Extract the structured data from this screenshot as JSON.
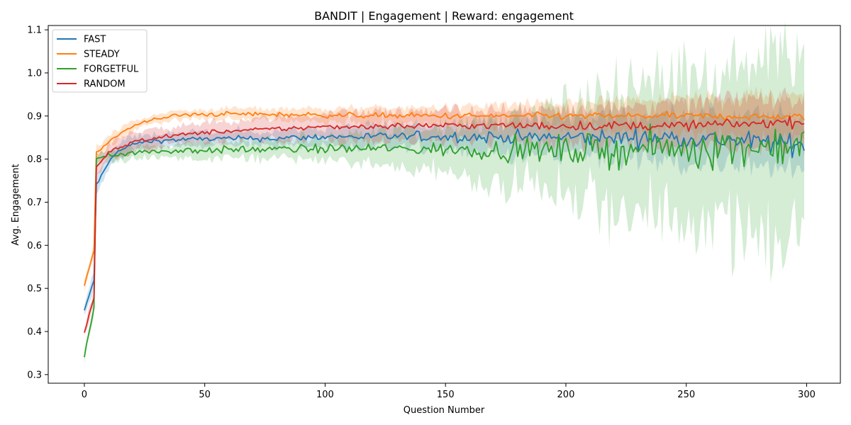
{
  "chart_data": {
    "type": "line",
    "title": "BANDIT | Engagement | Reward: engagement",
    "xlabel": "Question Number",
    "ylabel": "Avg. Engagement",
    "xlim": [
      -15,
      314
    ],
    "ylim": [
      0.28,
      1.11
    ],
    "xticks": [
      0,
      50,
      100,
      150,
      200,
      250,
      300
    ],
    "yticks": [
      0.3,
      0.4,
      0.5,
      0.6,
      0.7,
      0.8,
      0.9,
      1.0,
      1.1
    ],
    "grid": false,
    "legend_position": "top-left",
    "n_points": 300,
    "series": [
      {
        "name": "FAST",
        "color": "#1f77b4",
        "anchors_x": [
          0,
          4,
          5,
          8,
          12,
          20,
          30,
          50,
          80,
          100,
          150,
          200,
          250,
          299
        ],
        "anchors_y": [
          0.447,
          0.52,
          0.74,
          0.77,
          0.81,
          0.835,
          0.843,
          0.847,
          0.848,
          0.852,
          0.852,
          0.85,
          0.85,
          0.833
        ],
        "noise_anchors_x": [
          0,
          100,
          150,
          200,
          250,
          299
        ],
        "noise_anchors_y": [
          0.002,
          0.004,
          0.006,
          0.009,
          0.011,
          0.012
        ],
        "band_anchors_x": [
          0,
          5,
          10,
          30,
          100,
          150,
          200,
          250,
          299
        ],
        "band_anchors_y": [
          0.01,
          0.025,
          0.02,
          0.015,
          0.02,
          0.03,
          0.045,
          0.055,
          0.06
        ]
      },
      {
        "name": "STEADY",
        "color": "#ff7f0e",
        "anchors_x": [
          0,
          4,
          5,
          8,
          12,
          20,
          30,
          40,
          60,
          100,
          150,
          200,
          250,
          299
        ],
        "anchors_y": [
          0.507,
          0.59,
          0.815,
          0.83,
          0.85,
          0.875,
          0.895,
          0.902,
          0.905,
          0.902,
          0.9,
          0.9,
          0.9,
          0.897
        ],
        "noise_anchors_x": [
          0,
          100,
          200,
          299
        ],
        "noise_anchors_y": [
          0.002,
          0.003,
          0.004,
          0.004
        ],
        "band_anchors_x": [
          0,
          5,
          30,
          100,
          150,
          200,
          250,
          299
        ],
        "band_anchors_y": [
          0.01,
          0.015,
          0.01,
          0.015,
          0.02,
          0.03,
          0.04,
          0.055
        ]
      },
      {
        "name": "FORGETFUL",
        "color": "#2ca02c",
        "anchors_x": [
          0,
          4,
          5,
          10,
          20,
          40,
          80,
          120,
          150,
          200,
          250,
          299
        ],
        "anchors_y": [
          0.342,
          0.455,
          0.8,
          0.81,
          0.815,
          0.82,
          0.823,
          0.825,
          0.822,
          0.82,
          0.825,
          0.835
        ],
        "noise_anchors_x": [
          0,
          100,
          150,
          180,
          200,
          250,
          299
        ],
        "noise_anchors_y": [
          0.003,
          0.005,
          0.008,
          0.013,
          0.017,
          0.022,
          0.025
        ],
        "band_anchors_x": [
          0,
          5,
          30,
          100,
          150,
          180,
          200,
          220,
          250,
          270,
          290,
          299
        ],
        "band_anchors_y": [
          0.012,
          0.012,
          0.015,
          0.025,
          0.055,
          0.08,
          0.1,
          0.14,
          0.17,
          0.2,
          0.22,
          0.2
        ]
      },
      {
        "name": "RANDOM",
        "color": "#d62728",
        "anchors_x": [
          0,
          4,
          5,
          10,
          20,
          30,
          50,
          80,
          100,
          150,
          200,
          250,
          299
        ],
        "anchors_y": [
          0.395,
          0.48,
          0.78,
          0.815,
          0.84,
          0.85,
          0.862,
          0.87,
          0.875,
          0.878,
          0.877,
          0.878,
          0.887
        ],
        "noise_anchors_x": [
          0,
          100,
          200,
          299
        ],
        "noise_anchors_y": [
          0.002,
          0.003,
          0.005,
          0.006
        ],
        "band_anchors_x": [
          0,
          5,
          30,
          100,
          150,
          200,
          250,
          299
        ],
        "band_anchors_y": [
          0.01,
          0.02,
          0.02,
          0.03,
          0.035,
          0.04,
          0.05,
          0.06
        ]
      }
    ]
  }
}
